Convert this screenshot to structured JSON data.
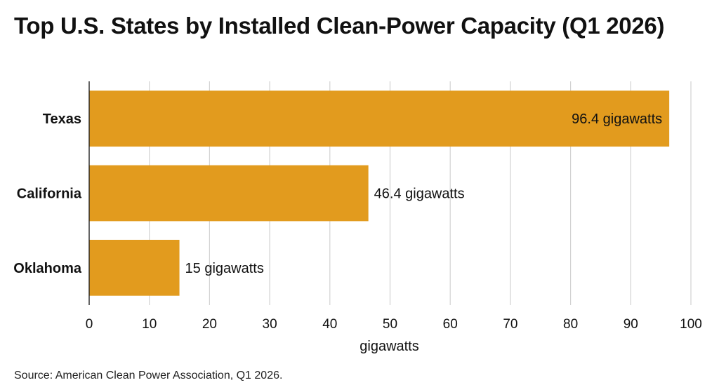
{
  "title": "Top U.S. States by Installed Clean-Power Capacity (Q1 2026)",
  "source": "Source: American Clean Power Association, Q1 2026.",
  "colors": {
    "bar": "#E29B1E"
  },
  "chart_data": {
    "type": "bar",
    "orientation": "horizontal",
    "categories": [
      "Texas",
      "California",
      "Oklahoma"
    ],
    "values": [
      96.4,
      46.4,
      15
    ],
    "value_labels": [
      "96.4 gigawatts",
      "46.4 gigawatts",
      "15 gigawatts"
    ],
    "xlabel": "gigawatts",
    "xlim": [
      0,
      100
    ],
    "xticks": [
      0,
      10,
      20,
      30,
      40,
      50,
      60,
      70,
      80,
      90,
      100
    ],
    "grid": "vertical"
  }
}
